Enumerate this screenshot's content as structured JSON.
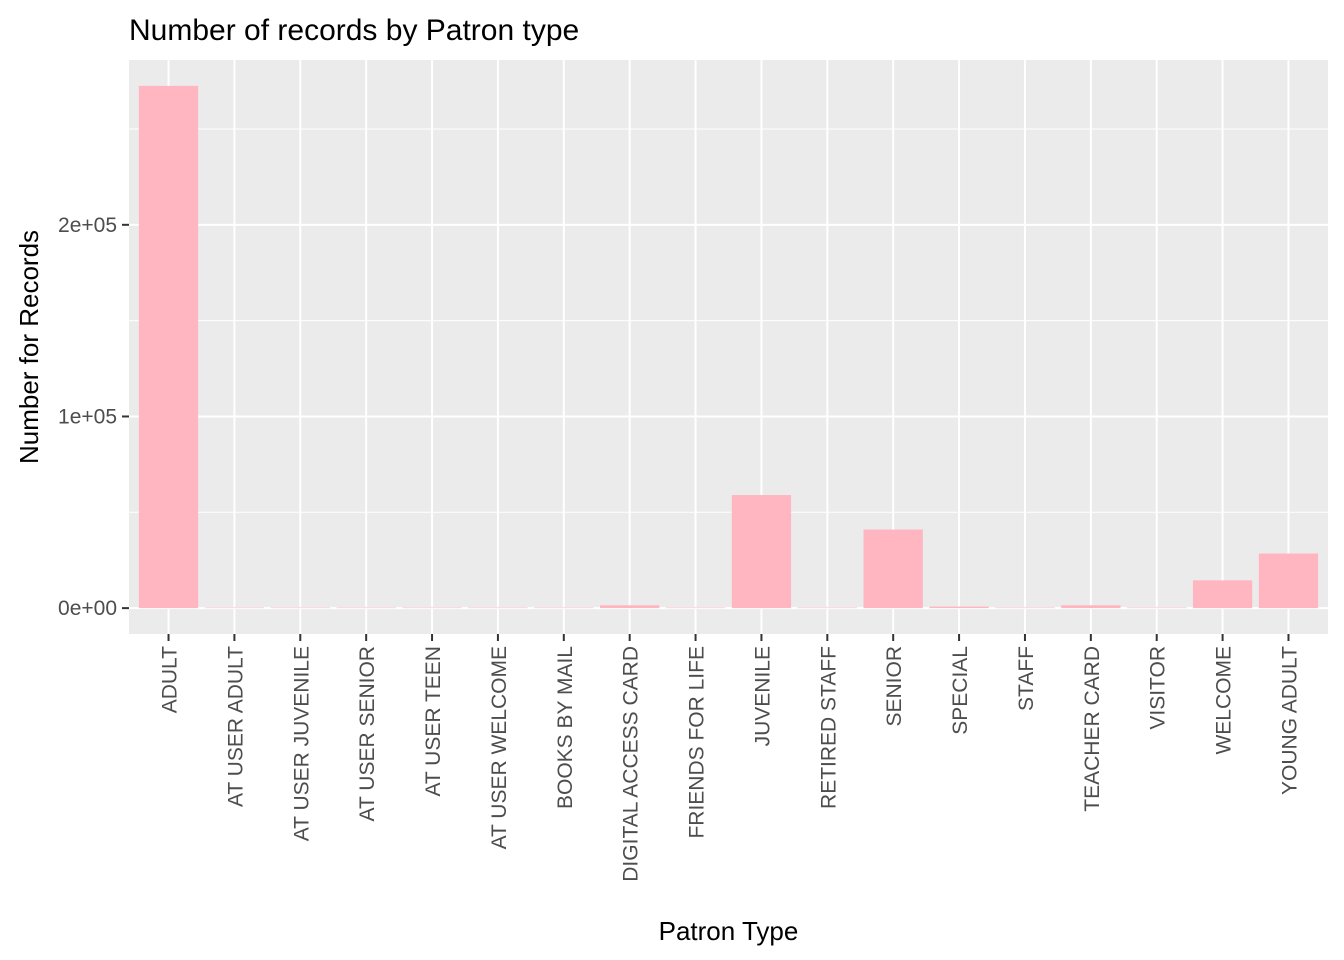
{
  "colors": {
    "panel_background": "#ebebeb",
    "grid": "#ffffff",
    "bar_fill": "#ffb6c1",
    "tick": "#333333",
    "tick_label": "#4d4d4d",
    "text": "#000000"
  },
  "chart_data": {
    "type": "bar",
    "title": "Number of records by Patron type",
    "xlabel": "Patron Type",
    "ylabel": "Number for Records",
    "categories": [
      "ADULT",
      "AT USER ADULT",
      "AT USER JUVENILE",
      "AT USER SENIOR",
      "AT USER TEEN",
      "AT USER WELCOME",
      "BOOKS BY MAIL",
      "DIGITAL ACCESS CARD",
      "FRIENDS FOR LIFE",
      "JUVENILE",
      "RETIRED STAFF",
      "SENIOR",
      "SPECIAL",
      "STAFF",
      "TEACHER CARD",
      "VISITOR",
      "WELCOME",
      "YOUNG ADULT"
    ],
    "values": [
      272500,
      50,
      50,
      50,
      50,
      50,
      50,
      1500,
      50,
      59000,
      50,
      41000,
      800,
      300,
      1500,
      50,
      14500,
      28500
    ],
    "ylim": [
      -13500,
      286000
    ],
    "yticks": [
      0,
      100000,
      200000
    ],
    "ytick_labels": [
      "0e+00",
      "1e+05",
      "2e+05"
    ],
    "y_minor_gridlines": [
      50000,
      150000,
      250000
    ],
    "grid": true,
    "legend": "none",
    "x_label_rotation": "vertical"
  }
}
